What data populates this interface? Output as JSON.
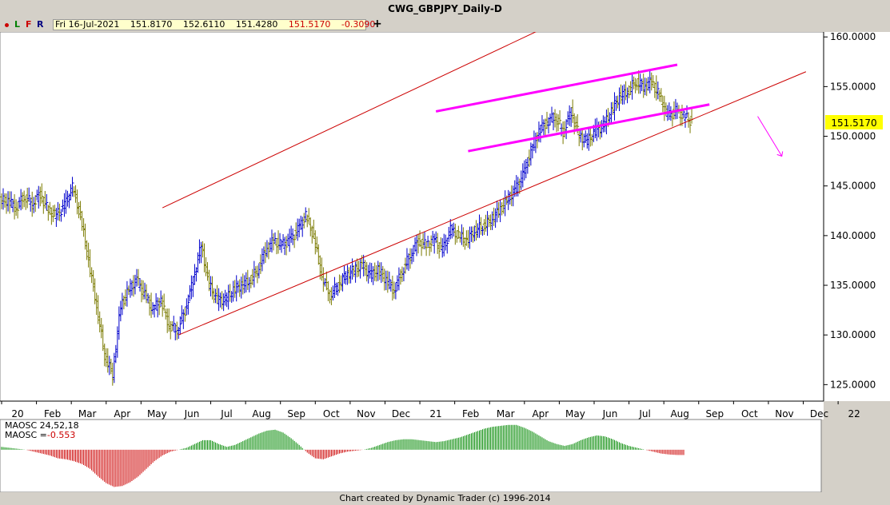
{
  "window_title": "CWG_GBPJPY_Daily-D",
  "toolbar": {
    "buttons": [
      "L",
      "F",
      "R"
    ],
    "ohlc": {
      "date": "Fri 16-Jul-2021",
      "open": "151.8170",
      "high": "152.6110",
      "low": "151.4280",
      "close": "151.5170",
      "change": "-0.3090"
    },
    "add_label": "+"
  },
  "price_tag": "151.5170",
  "indicator": {
    "title": "MAOSC 24,52,18",
    "value_label": "MAOSC =",
    "value": "-0.553"
  },
  "footer": "Chart created by Dynamic Trader  (c) 1996-2014",
  "colors": {
    "up_bar": "#0000cc",
    "down_bar": "#7a7a00",
    "channel": "#cc0000",
    "pattern": "#ff00ff",
    "osc_pos": "#008800",
    "osc_neg": "#cc0000",
    "price_tag_bg": "#ffff00"
  },
  "chart_data": {
    "type": "bar",
    "title": "CWG_GBPJPY_Daily-D",
    "x_tick_labels": [
      "20",
      "Feb",
      "Mar",
      "Apr",
      "May",
      "Jun",
      "Jul",
      "Aug",
      "Sep",
      "Oct",
      "Nov",
      "Dec",
      "21",
      "Feb",
      "Mar",
      "Apr",
      "May",
      "Jun",
      "Jul",
      "Aug",
      "Sep",
      "Oct",
      "Nov",
      "Dec",
      "22"
    ],
    "y_tick_labels": [
      "125.0000",
      "130.0000",
      "135.0000",
      "140.0000",
      "145.0000",
      "150.0000",
      "155.0000",
      "160.0000"
    ],
    "ylim": [
      123.5,
      160.5
    ],
    "series": [
      {
        "weeks": [
          [
            0,
            143.5
          ],
          [
            1,
            142.8
          ],
          [
            2,
            144.0
          ],
          [
            3,
            143.2
          ],
          [
            4,
            144.2
          ],
          [
            5,
            142.5
          ],
          [
            6,
            142.0
          ],
          [
            7,
            143.0
          ],
          [
            8,
            144.8
          ],
          [
            9,
            142.0
          ],
          [
            10,
            137.5
          ],
          [
            11,
            133.0
          ],
          [
            12,
            128.0
          ],
          [
            13,
            126.0
          ],
          [
            14,
            133.0
          ],
          [
            15,
            134.5
          ],
          [
            16,
            135.5
          ],
          [
            17,
            134.0
          ],
          [
            18,
            132.5
          ],
          [
            19,
            133.5
          ],
          [
            20,
            131.0
          ],
          [
            21,
            130.5
          ],
          [
            22,
            132.5
          ],
          [
            23,
            135.5
          ],
          [
            24,
            139.0
          ],
          [
            25,
            135.0
          ],
          [
            26,
            133.5
          ],
          [
            27,
            133.5
          ],
          [
            28,
            134.5
          ],
          [
            29,
            135.0
          ],
          [
            30,
            135.5
          ],
          [
            31,
            136.5
          ],
          [
            32,
            138.5
          ],
          [
            33,
            139.5
          ],
          [
            34,
            139.0
          ],
          [
            35,
            139.5
          ],
          [
            36,
            140.5
          ],
          [
            37,
            142.0
          ],
          [
            38,
            140.0
          ],
          [
            39,
            136.0
          ],
          [
            40,
            134.0
          ],
          [
            41,
            135.0
          ],
          [
            42,
            136.0
          ],
          [
            43,
            136.5
          ],
          [
            44,
            137.0
          ],
          [
            45,
            136.0
          ],
          [
            46,
            136.5
          ],
          [
            47,
            135.5
          ],
          [
            48,
            134.5
          ],
          [
            49,
            136.5
          ],
          [
            50,
            138.0
          ],
          [
            51,
            139.5
          ],
          [
            52,
            139.0
          ],
          [
            53,
            139.5
          ],
          [
            54,
            138.5
          ],
          [
            55,
            140.5
          ],
          [
            56,
            140.0
          ],
          [
            57,
            139.5
          ],
          [
            58,
            140.5
          ],
          [
            59,
            141.0
          ],
          [
            60,
            141.5
          ],
          [
            61,
            142.5
          ],
          [
            62,
            143.5
          ],
          [
            63,
            144.5
          ],
          [
            64,
            146.0
          ],
          [
            65,
            148.5
          ],
          [
            66,
            150.5
          ],
          [
            67,
            151.5
          ],
          [
            68,
            152.0
          ],
          [
            69,
            150.5
          ],
          [
            70,
            152.5
          ],
          [
            71,
            150.0
          ],
          [
            72,
            149.5
          ],
          [
            73,
            150.5
          ],
          [
            74,
            151.0
          ],
          [
            75,
            152.5
          ],
          [
            76,
            154.0
          ],
          [
            77,
            154.5
          ],
          [
            78,
            155.5
          ],
          [
            79,
            155.0
          ],
          [
            80,
            155.5
          ],
          [
            81,
            154.0
          ],
          [
            82,
            152.0
          ],
          [
            83,
            152.5
          ],
          [
            84,
            152.0
          ],
          [
            85,
            151.5
          ]
        ]
      }
    ],
    "indicator_series": [
      [
        0,
        0.3
      ],
      [
        1,
        0.2
      ],
      [
        2,
        0.1
      ],
      [
        3,
        0.0
      ],
      [
        4,
        -0.2
      ],
      [
        5,
        -0.4
      ],
      [
        6,
        -0.6
      ],
      [
        7,
        -0.9
      ],
      [
        8,
        -1.0
      ],
      [
        9,
        -1.2
      ],
      [
        10,
        -1.5
      ],
      [
        11,
        -2.0
      ],
      [
        12,
        -2.8
      ],
      [
        13,
        -3.5
      ],
      [
        14,
        -3.9
      ],
      [
        15,
        -3.8
      ],
      [
        16,
        -3.4
      ],
      [
        17,
        -2.8
      ],
      [
        18,
        -2.0
      ],
      [
        19,
        -1.2
      ],
      [
        20,
        -0.6
      ],
      [
        21,
        -0.2
      ],
      [
        22,
        0.0
      ],
      [
        23,
        0.2
      ],
      [
        24,
        0.6
      ],
      [
        25,
        1.0
      ],
      [
        26,
        1.0
      ],
      [
        27,
        0.6
      ],
      [
        28,
        0.3
      ],
      [
        29,
        0.5
      ],
      [
        30,
        0.9
      ],
      [
        31,
        1.3
      ],
      [
        32,
        1.7
      ],
      [
        33,
        2.0
      ],
      [
        34,
        2.1
      ],
      [
        35,
        1.8
      ],
      [
        36,
        1.2
      ],
      [
        37,
        0.5
      ],
      [
        38,
        -0.3
      ],
      [
        39,
        -0.9
      ],
      [
        40,
        -1.0
      ],
      [
        41,
        -0.7
      ],
      [
        42,
        -0.4
      ],
      [
        43,
        -0.2
      ],
      [
        44,
        -0.1
      ],
      [
        45,
        0.0
      ],
      [
        46,
        0.2
      ],
      [
        47,
        0.5
      ],
      [
        48,
        0.8
      ],
      [
        49,
        1.0
      ],
      [
        50,
        1.1
      ],
      [
        51,
        1.1
      ],
      [
        52,
        1.0
      ],
      [
        53,
        0.9
      ],
      [
        54,
        0.8
      ],
      [
        55,
        0.9
      ],
      [
        56,
        1.1
      ],
      [
        57,
        1.3
      ],
      [
        58,
        1.6
      ],
      [
        59,
        1.9
      ],
      [
        60,
        2.2
      ],
      [
        61,
        2.4
      ],
      [
        62,
        2.5
      ],
      [
        63,
        2.6
      ],
      [
        64,
        2.6
      ],
      [
        65,
        2.3
      ],
      [
        66,
        1.9
      ],
      [
        67,
        1.4
      ],
      [
        68,
        0.9
      ],
      [
        69,
        0.6
      ],
      [
        70,
        0.4
      ],
      [
        71,
        0.6
      ],
      [
        72,
        1.0
      ],
      [
        73,
        1.3
      ],
      [
        74,
        1.5
      ],
      [
        75,
        1.4
      ],
      [
        76,
        1.1
      ],
      [
        77,
        0.7
      ],
      [
        78,
        0.4
      ],
      [
        79,
        0.2
      ],
      [
        80,
        0.0
      ],
      [
        81,
        -0.2
      ],
      [
        82,
        -0.4
      ],
      [
        83,
        -0.5
      ],
      [
        84,
        -0.55
      ],
      [
        85,
        -0.553
      ]
    ],
    "indicator_ylim": [
      -4.2,
      3.0
    ],
    "annotations": {
      "channel_upper": [
        [
          20,
          142.8
        ],
        [
          69,
          161.5
        ]
      ],
      "channel_lower": [
        [
          22,
          130.0
        ],
        [
          100,
          156.5
        ]
      ],
      "pattern_upper": [
        [
          54,
          152.5
        ],
        [
          84,
          157.2
        ]
      ],
      "pattern_lower": [
        [
          58,
          148.5
        ],
        [
          88,
          153.2
        ]
      ],
      "arrow": [
        [
          94,
          152.0
        ],
        [
          97,
          148.0
        ]
      ]
    },
    "xlim_weeks": [
      0,
      102
    ],
    "grid": false,
    "legend": "none"
  }
}
